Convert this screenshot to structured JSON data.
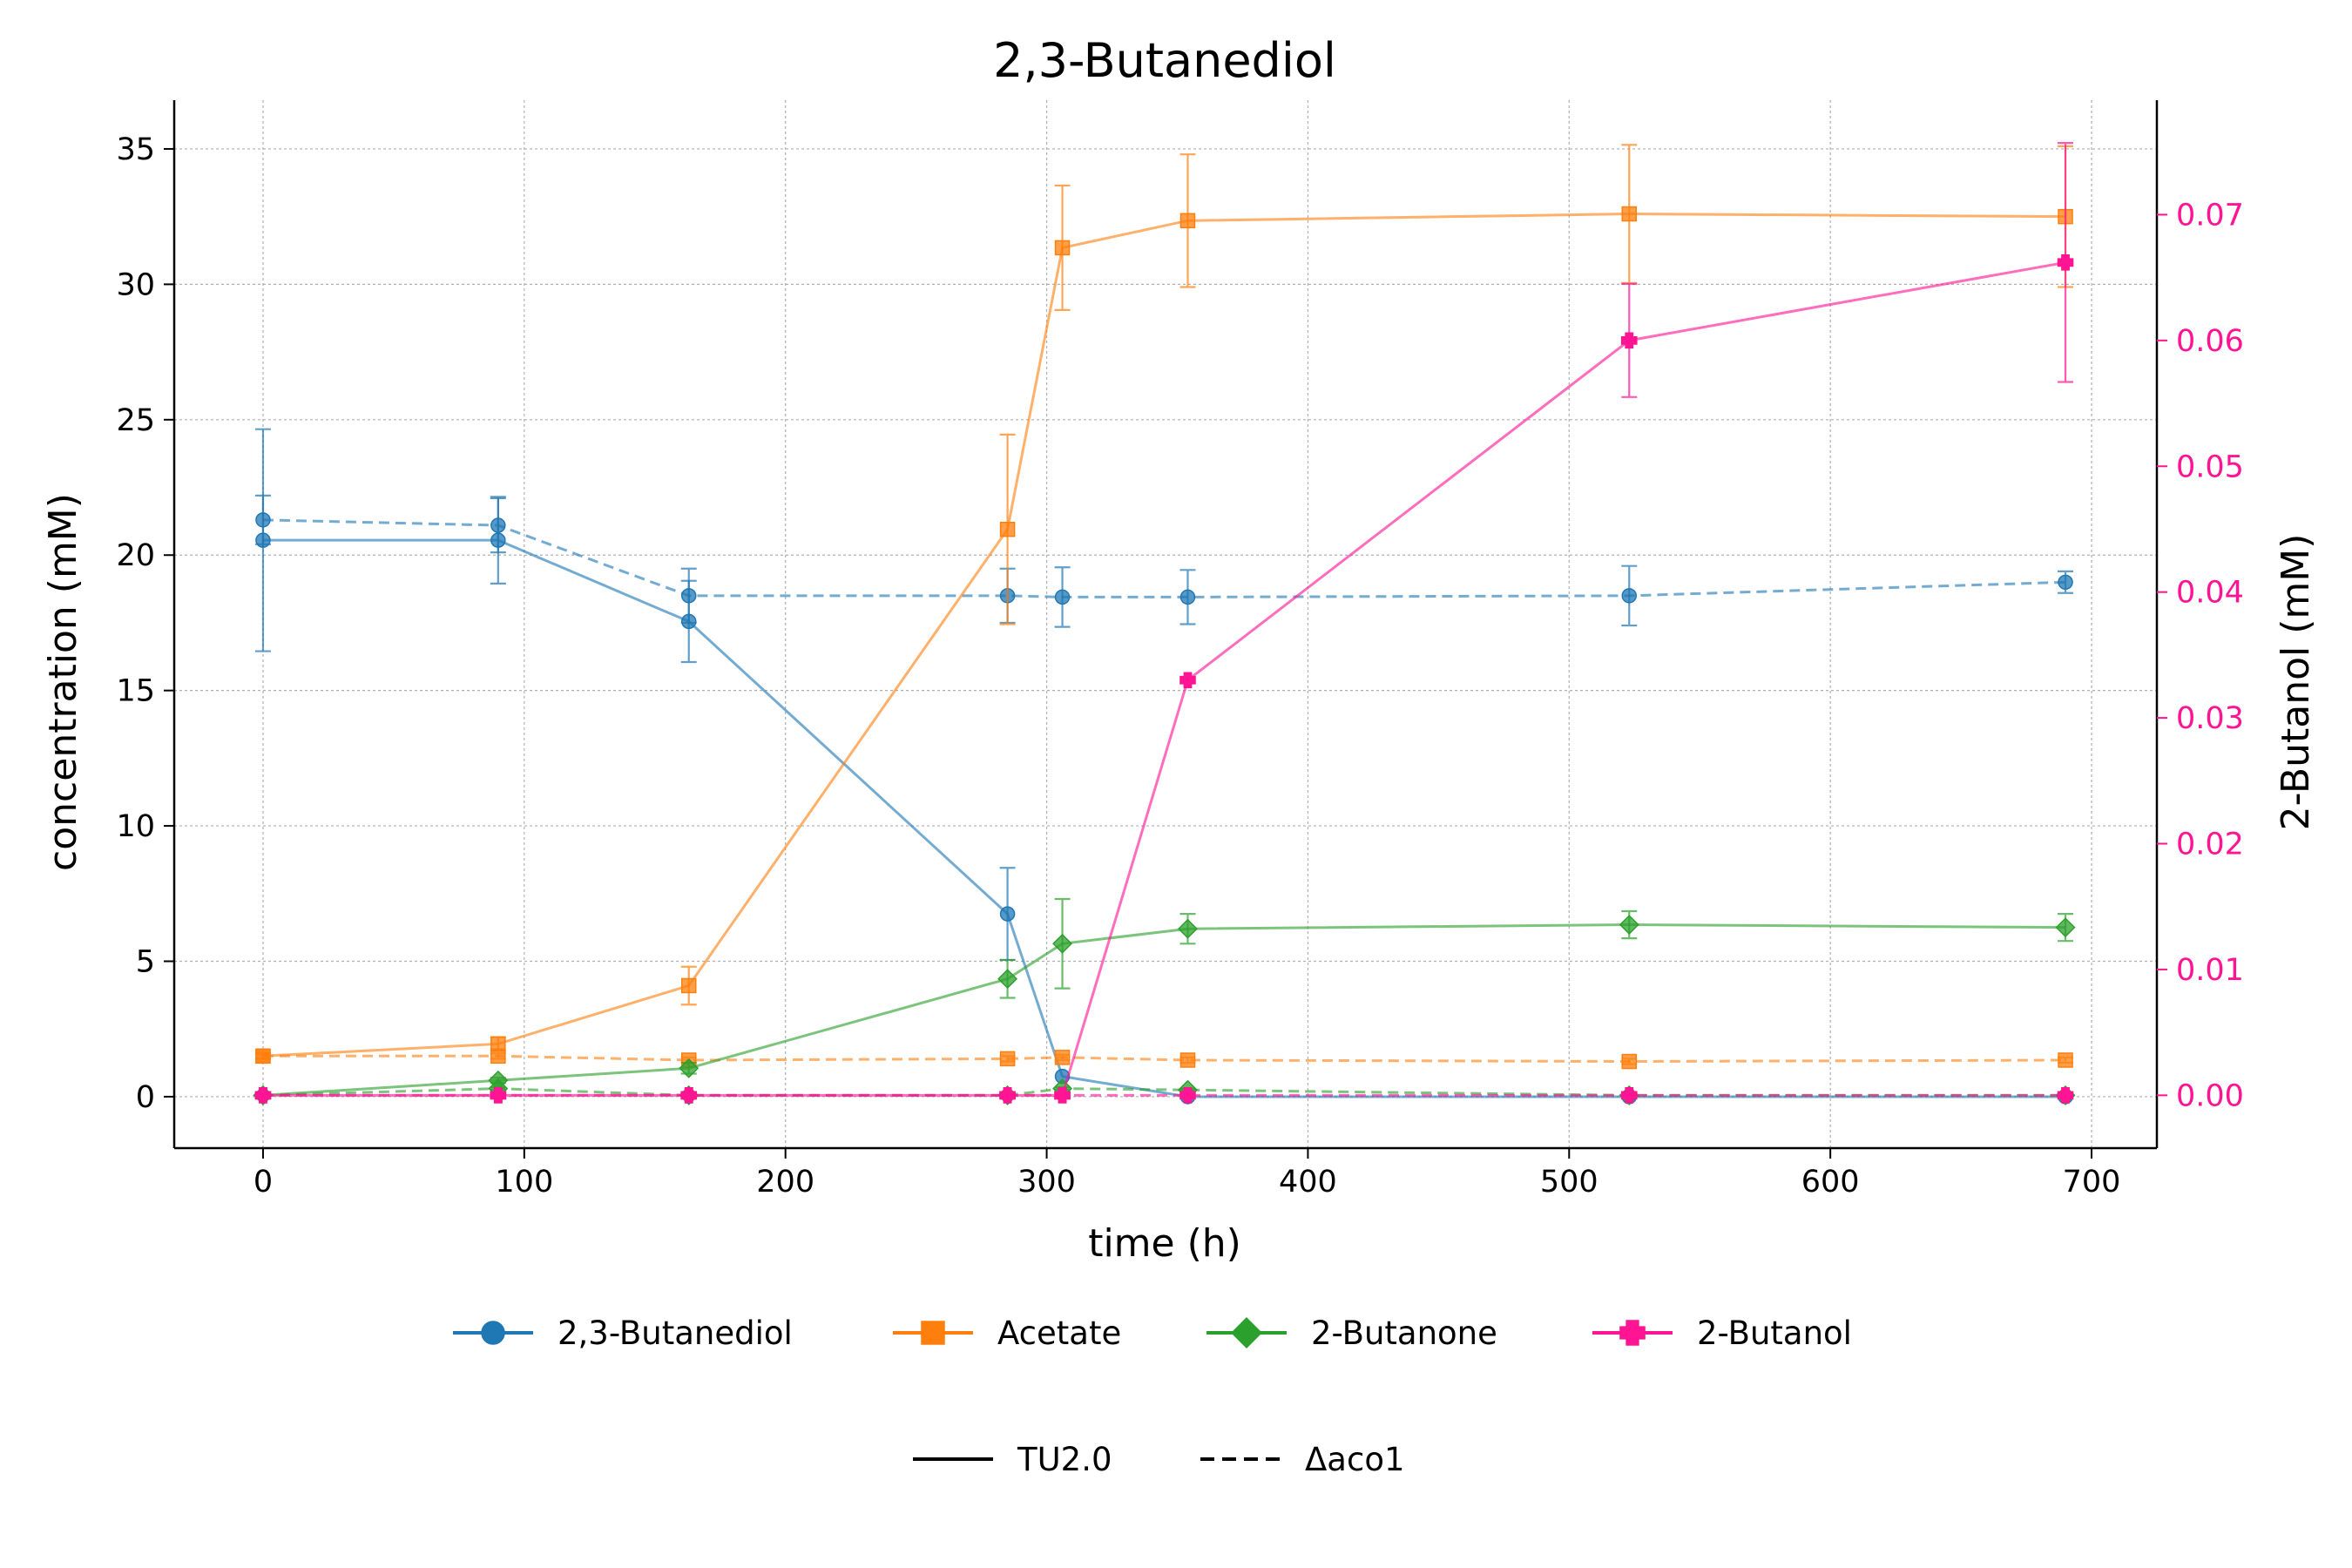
{
  "chart_data": {
    "type": "line",
    "title": "2,3-Butanediol",
    "xlabel": "time (h)",
    "ylabel": "concentration (mM)",
    "ylabel_right": "2-Butanol (mM)",
    "xlim": [
      -34,
      725
    ],
    "ylim": [
      -1.9,
      36.8
    ],
    "ylim_right": [
      -0.0042,
      0.0791
    ],
    "x_ticks": [
      0,
      100,
      200,
      300,
      400,
      500,
      600,
      700
    ],
    "y_ticks": [
      0,
      5,
      10,
      15,
      20,
      25,
      30,
      35
    ],
    "y_ticks_right": [
      0.0,
      0.01,
      0.02,
      0.03,
      0.04,
      0.05,
      0.06,
      0.07
    ],
    "y_ticks_right_labels": [
      "0.00",
      "0.01",
      "0.02",
      "0.03",
      "0.04",
      "0.05",
      "0.06",
      "0.07"
    ],
    "grid": true,
    "colors": {
      "butanediol": "#1f77b4",
      "acetate": "#ff7f0e",
      "butanone": "#2ca02c",
      "butanol": "#ff1493",
      "axis": "#000000",
      "grid": "#b0b0b0"
    },
    "legend_series": [
      {
        "label": "2,3-Butanediol",
        "color": "#1f77b4",
        "marker": "circle"
      },
      {
        "label": "Acetate",
        "color": "#ff7f0e",
        "marker": "square"
      },
      {
        "label": "2-Butanone",
        "color": "#2ca02c",
        "marker": "diamond"
      },
      {
        "label": "2-Butanol",
        "color": "#ff1493",
        "marker": "plus"
      }
    ],
    "legend_styles": [
      {
        "label": "TU2.0",
        "dash": "solid"
      },
      {
        "label": "Δaco1",
        "dash": "dashed"
      }
    ],
    "legend_placement": "bottom",
    "series": [
      {
        "compound": "2,3-Butanediol",
        "strain": "TU2.0",
        "color": "#1f77b4",
        "marker": "circle",
        "dash": "solid",
        "axis": "left",
        "x": [
          0,
          90,
          163,
          285,
          306,
          354,
          523,
          690
        ],
        "y": [
          20.55,
          20.55,
          17.55,
          6.75,
          0.75,
          0.0,
          0.0,
          0.0
        ],
        "err": [
          4.1,
          1.6,
          1.5,
          1.7,
          0.0,
          0.0,
          0.0,
          0.0
        ]
      },
      {
        "compound": "2,3-Butanediol",
        "strain": "Δaco1",
        "color": "#1f77b4",
        "marker": "circle",
        "dash": "dashed",
        "axis": "left",
        "x": [
          0,
          90,
          163,
          285,
          306,
          354,
          523,
          690
        ],
        "y": [
          21.3,
          21.1,
          18.5,
          18.5,
          18.45,
          18.45,
          18.5,
          19.0
        ],
        "err": [
          0.9,
          1.0,
          1.0,
          1.0,
          1.1,
          1.0,
          1.1,
          0.4
        ]
      },
      {
        "compound": "Acetate",
        "strain": "TU2.0",
        "color": "#ff7f0e",
        "marker": "square",
        "dash": "solid",
        "axis": "left",
        "x": [
          0,
          90,
          163,
          285,
          306,
          354,
          523,
          690
        ],
        "y": [
          1.5,
          1.95,
          4.1,
          20.95,
          31.35,
          32.35,
          32.6,
          32.5
        ],
        "err": [
          0.1,
          0.25,
          0.7,
          3.5,
          2.3,
          2.45,
          2.55,
          2.6
        ]
      },
      {
        "compound": "Acetate",
        "strain": "Δaco1",
        "color": "#ff7f0e",
        "marker": "square",
        "dash": "dashed",
        "axis": "left",
        "x": [
          0,
          90,
          163,
          285,
          306,
          354,
          523,
          690
        ],
        "y": [
          1.5,
          1.5,
          1.35,
          1.4,
          1.45,
          1.35,
          1.3,
          1.35
        ],
        "err": [
          0.1,
          0.1,
          0.1,
          0.1,
          0.1,
          0.1,
          0.1,
          0.1
        ]
      },
      {
        "compound": "2-Butanone",
        "strain": "TU2.0",
        "color": "#2ca02c",
        "marker": "diamond",
        "dash": "solid",
        "axis": "left",
        "x": [
          0,
          90,
          163,
          285,
          306,
          354,
          523,
          690
        ],
        "y": [
          0.05,
          0.6,
          1.05,
          4.35,
          5.65,
          6.2,
          6.35,
          6.25
        ],
        "err": [
          0.05,
          0.1,
          0.2,
          0.7,
          1.65,
          0.55,
          0.5,
          0.5
        ]
      },
      {
        "compound": "2-Butanone",
        "strain": "Δaco1",
        "color": "#2ca02c",
        "marker": "diamond",
        "dash": "dashed",
        "axis": "left",
        "x": [
          0,
          90,
          163,
          285,
          306,
          354,
          523,
          690
        ],
        "y": [
          0.05,
          0.3,
          0.05,
          0.05,
          0.3,
          0.25,
          0.05,
          0.05
        ],
        "err": [
          0.05,
          0.05,
          0.05,
          0.05,
          0.05,
          0.05,
          0.05,
          0.05
        ]
      },
      {
        "compound": "2-Butanol",
        "strain": "TU2.0",
        "color": "#ff1493",
        "marker": "plus",
        "dash": "solid",
        "axis": "right",
        "x": [
          0,
          90,
          163,
          285,
          306,
          354,
          523,
          690
        ],
        "y": [
          0.0,
          0.0,
          0.0,
          0.0,
          0.0,
          0.033,
          0.06,
          0.0662
        ],
        "err": [
          0.0,
          0.0,
          0.0,
          0.0,
          0.0,
          0.0,
          0.0045,
          0.0095
        ]
      },
      {
        "compound": "2-Butanol",
        "strain": "Δaco1",
        "color": "#ff1493",
        "marker": "plus",
        "dash": "dashed",
        "axis": "right",
        "x": [
          0,
          90,
          163,
          285,
          306,
          354,
          523,
          690
        ],
        "y": [
          0.0,
          0.0,
          0.0,
          0.0,
          0.0,
          0.0,
          0.0,
          0.0
        ],
        "err": [
          0.0,
          0.0,
          0.0,
          0.0,
          0.0,
          0.0,
          0.0,
          0.0
        ]
      }
    ]
  }
}
